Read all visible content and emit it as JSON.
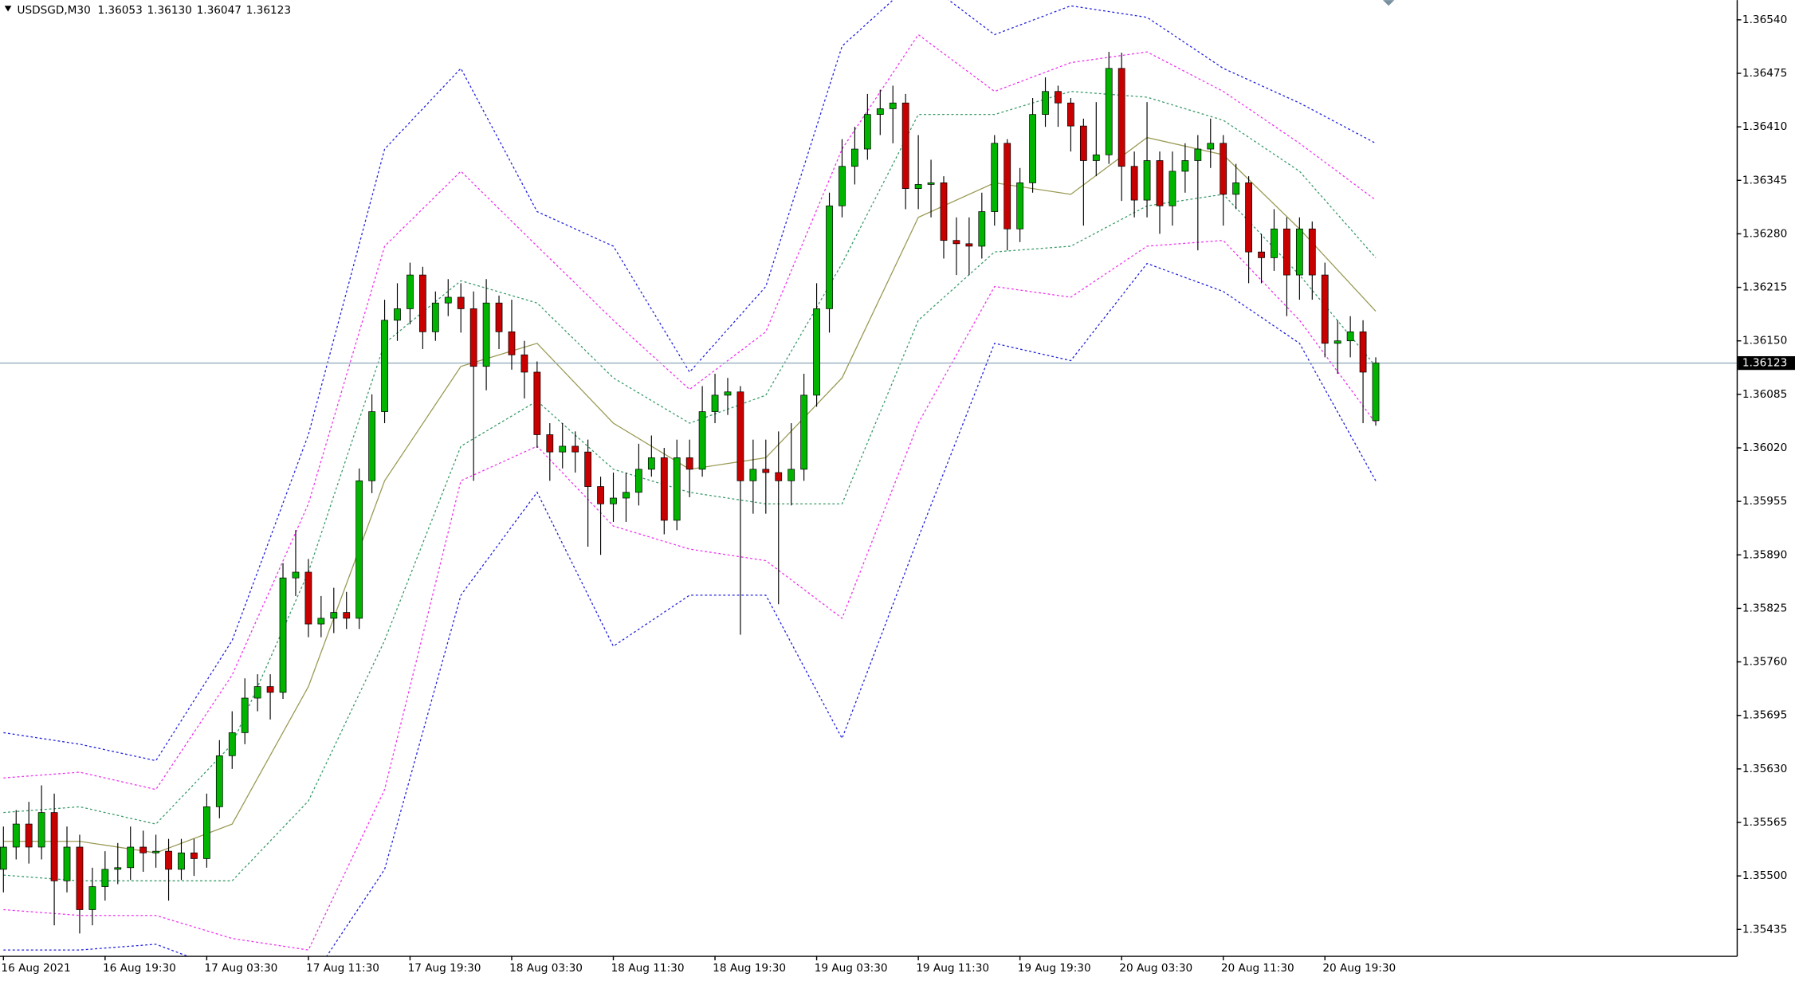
{
  "chart_data": {
    "type": "candlestick",
    "title": "USDSGD,M30",
    "ohlc_labels": [
      "1.36053",
      "1.36130",
      "1.36047",
      "1.36123"
    ],
    "colors": {
      "up": "#00b400",
      "down": "#c80000",
      "outline": "#000000",
      "price_line": "#9fb3c3"
    },
    "grid": false,
    "xlim": [
      -0.27,
      136.4
    ],
    "ylim": [
      1.35403,
      1.36564
    ],
    "xticks": [
      {
        "value": 0,
        "label": "16 Aug 2021"
      },
      {
        "value": 8,
        "label": "16 Aug 19:30"
      },
      {
        "value": 16,
        "label": "17 Aug 03:30"
      },
      {
        "value": 24,
        "label": "17 Aug 11:30"
      },
      {
        "value": 32,
        "label": "17 Aug 19:30"
      },
      {
        "value": 40,
        "label": "18 Aug 03:30"
      },
      {
        "value": 48,
        "label": "18 Aug 11:30"
      },
      {
        "value": 56,
        "label": "18 Aug 19:30"
      },
      {
        "value": 64,
        "label": "19 Aug 03:30"
      },
      {
        "value": 72,
        "label": "19 Aug 11:30"
      },
      {
        "value": 80,
        "label": "19 Aug 19:30"
      },
      {
        "value": 88,
        "label": "20 Aug 03:30"
      },
      {
        "value": 96,
        "label": "20 Aug 11:30"
      },
      {
        "value": 104,
        "label": "20 Aug 19:30"
      }
    ],
    "yticks": [
      {
        "value": 1.3654,
        "label": "1.36540"
      },
      {
        "value": 1.36475,
        "label": "1.36475"
      },
      {
        "value": 1.3641,
        "label": "1.36410"
      },
      {
        "value": 1.36345,
        "label": "1.36345"
      },
      {
        "value": 1.3628,
        "label": "1.36280"
      },
      {
        "value": 1.36215,
        "label": "1.36215"
      },
      {
        "value": 1.3615,
        "label": "1.36150"
      },
      {
        "value": 1.36085,
        "label": "1.36085"
      },
      {
        "value": 1.3602,
        "label": "1.36020"
      },
      {
        "value": 1.35955,
        "label": "1.35955"
      },
      {
        "value": 1.3589,
        "label": "1.35890"
      },
      {
        "value": 1.35825,
        "label": "1.35825"
      },
      {
        "value": 1.3576,
        "label": "1.35760"
      },
      {
        "value": 1.35695,
        "label": "1.35695"
      },
      {
        "value": 1.3563,
        "label": "1.35630"
      },
      {
        "value": 1.35565,
        "label": "1.35565"
      },
      {
        "value": 1.355,
        "label": "1.35500"
      },
      {
        "value": 1.35435,
        "label": "1.35435"
      }
    ],
    "open": [
      1.35508,
      1.35535,
      1.35563,
      1.35535,
      1.35577,
      1.35494,
      1.35535,
      1.35459,
      1.35487,
      1.35508,
      1.3551,
      1.35535,
      1.35528,
      1.3553,
      1.35508,
      1.35528,
      1.35521,
      1.35584,
      1.35646,
      1.35674,
      1.35716,
      1.3573,
      1.35723,
      1.35862,
      1.35869,
      1.35806,
      1.35813,
      1.3582,
      1.35813,
      1.3598,
      1.36064,
      1.36175,
      1.36189,
      1.3623,
      1.36161,
      1.36196,
      1.36203,
      1.36189,
      1.36119,
      1.36196,
      1.36161,
      1.36133,
      1.36112,
      1.36036,
      1.36015,
      1.36022,
      1.36015,
      1.35973,
      1.35952,
      1.35959,
      1.35966,
      1.35994,
      1.36008,
      1.35932,
      1.36008,
      1.35994,
      1.36064,
      1.36084,
      1.36088,
      1.3598,
      1.35994,
      1.3599,
      1.3598,
      1.35994,
      1.36084,
      1.36189,
      1.36314,
      1.36362,
      1.36383,
      1.36425,
      1.36432,
      1.36439,
      1.36335,
      1.3634,
      1.36342,
      1.36272,
      1.36268,
      1.36265,
      1.36307,
      1.3639,
      1.36286,
      1.36342,
      1.36425,
      1.36453,
      1.36439,
      1.36411,
      1.36369,
      1.36376,
      1.36481,
      1.36362,
      1.36321,
      1.36369,
      1.36314,
      1.36356,
      1.36369,
      1.36383,
      1.3639,
      1.36328,
      1.36342,
      1.36258,
      1.36251,
      1.36286,
      1.3623,
      1.36286,
      1.3623,
      1.36147,
      1.3615,
      1.36161,
      1.36053
    ],
    "high": [
      1.3556,
      1.3558,
      1.3559,
      1.3561,
      1.356,
      1.3556,
      1.3555,
      1.3551,
      1.3553,
      1.3554,
      1.3556,
      1.35555,
      1.3555,
      1.35545,
      1.35545,
      1.35545,
      1.356,
      1.35665,
      1.357,
      1.3574,
      1.35745,
      1.35745,
      1.3588,
      1.3592,
      1.35885,
      1.3584,
      1.3585,
      1.35845,
      1.35995,
      1.36085,
      1.362,
      1.3622,
      1.36245,
      1.3624,
      1.3621,
      1.36225,
      1.3622,
      1.3621,
      1.36225,
      1.36205,
      1.362,
      1.3615,
      1.36125,
      1.3605,
      1.3605,
      1.3604,
      1.3603,
      1.35985,
      1.3599,
      1.3599,
      1.36025,
      1.36035,
      1.3602,
      1.3603,
      1.3603,
      1.36095,
      1.3611,
      1.36105,
      1.36095,
      1.3603,
      1.3603,
      1.3604,
      1.3605,
      1.3611,
      1.3622,
      1.3633,
      1.36395,
      1.3641,
      1.3645,
      1.36455,
      1.3646,
      1.3645,
      1.364,
      1.3637,
      1.3635,
      1.363,
      1.363,
      1.3633,
      1.364,
      1.36395,
      1.3636,
      1.36445,
      1.3647,
      1.3646,
      1.36445,
      1.3642,
      1.3644,
      1.36501,
      1.365,
      1.3638,
      1.3644,
      1.3638,
      1.3638,
      1.3639,
      1.364,
      1.3642,
      1.364,
      1.36365,
      1.3635,
      1.3628,
      1.3631,
      1.363,
      1.363,
      1.36295,
      1.36245,
      1.36175,
      1.3618,
      1.36175,
      1.3613
    ],
    "low": [
      1.3548,
      1.3552,
      1.35515,
      1.3552,
      1.3544,
      1.3548,
      1.3543,
      1.3544,
      1.3547,
      1.3549,
      1.35495,
      1.35505,
      1.3551,
      1.3547,
      1.35495,
      1.355,
      1.3551,
      1.3557,
      1.3563,
      1.3566,
      1.357,
      1.3569,
      1.35715,
      1.3584,
      1.3579,
      1.3579,
      1.35795,
      1.358,
      1.358,
      1.35965,
      1.3605,
      1.3615,
      1.3617,
      1.3614,
      1.3615,
      1.3618,
      1.3616,
      1.3598,
      1.3609,
      1.3614,
      1.36115,
      1.3608,
      1.3602,
      1.3598,
      1.35995,
      1.3599,
      1.359,
      1.3589,
      1.3593,
      1.3593,
      1.3595,
      1.35985,
      1.35915,
      1.3592,
      1.3596,
      1.35985,
      1.3605,
      1.3606,
      1.35793,
      1.3594,
      1.3594,
      1.3583,
      1.3595,
      1.3598,
      1.3607,
      1.3616,
      1.363,
      1.3634,
      1.3637,
      1.364,
      1.3639,
      1.3631,
      1.3631,
      1.363,
      1.3625,
      1.3623,
      1.3623,
      1.3625,
      1.3629,
      1.3626,
      1.3627,
      1.3633,
      1.3641,
      1.3641,
      1.3638,
      1.3629,
      1.3635,
      1.36365,
      1.3632,
      1.363,
      1.363,
      1.3628,
      1.3629,
      1.3633,
      1.3626,
      1.3636,
      1.3629,
      1.3631,
      1.3622,
      1.3622,
      1.36235,
      1.3618,
      1.362,
      1.362,
      1.3613,
      1.3611,
      1.3613,
      1.3605,
      1.36047
    ],
    "close": [
      1.35535,
      1.35563,
      1.35535,
      1.35577,
      1.35494,
      1.35535,
      1.35459,
      1.35487,
      1.35508,
      1.3551,
      1.35535,
      1.35528,
      1.3553,
      1.35508,
      1.35528,
      1.35521,
      1.35584,
      1.35646,
      1.35674,
      1.35716,
      1.3573,
      1.35723,
      1.35862,
      1.35869,
      1.35806,
      1.35813,
      1.3582,
      1.35813,
      1.3598,
      1.36064,
      1.36175,
      1.36189,
      1.3623,
      1.36161,
      1.36196,
      1.36203,
      1.36189,
      1.36119,
      1.36196,
      1.36161,
      1.36133,
      1.36112,
      1.36036,
      1.36015,
      1.36022,
      1.36015,
      1.35973,
      1.35952,
      1.35959,
      1.35966,
      1.35994,
      1.36008,
      1.35932,
      1.36008,
      1.35994,
      1.36064,
      1.36084,
      1.36088,
      1.3598,
      1.35994,
      1.3599,
      1.3598,
      1.35994,
      1.36084,
      1.36189,
      1.36314,
      1.36362,
      1.36383,
      1.36425,
      1.36432,
      1.36439,
      1.36335,
      1.3634,
      1.36342,
      1.36272,
      1.36268,
      1.36265,
      1.36307,
      1.3639,
      1.36286,
      1.36342,
      1.36425,
      1.36453,
      1.36439,
      1.36411,
      1.36369,
      1.36376,
      1.36481,
      1.36362,
      1.36321,
      1.36369,
      1.36314,
      1.36356,
      1.36369,
      1.36383,
      1.3639,
      1.36328,
      1.36342,
      1.36258,
      1.36251,
      1.36286,
      1.3623,
      1.36286,
      1.3623,
      1.36147,
      1.3615,
      1.36161,
      1.36112,
      1.36123
    ],
    "bands": {
      "x": [
        0,
        6,
        12,
        18,
        24,
        30,
        36,
        42,
        48,
        54,
        60,
        66,
        72,
        78,
        84,
        90,
        96,
        102,
        108
      ],
      "series": [
        {
          "color": "#2222dd",
          "style": "dotted",
          "values": [
            1.35674,
            1.3566,
            1.3564,
            1.35786,
            1.36036,
            1.36383,
            1.36481,
            1.36307,
            1.36265,
            1.36112,
            1.36216,
            1.36508,
            1.36592,
            1.36522,
            1.36557,
            1.36543,
            1.36481,
            1.36439,
            1.3639
          ]
        },
        {
          "color": "#ee33ee",
          "style": "dotted",
          "values": [
            1.35619,
            1.35626,
            1.35605,
            1.35744,
            1.35952,
            1.36265,
            1.36356,
            1.36265,
            1.36175,
            1.36091,
            1.36161,
            1.36383,
            1.36522,
            1.36453,
            1.36488,
            1.36501,
            1.36453,
            1.3639,
            1.36321
          ]
        },
        {
          "color": "#3a9a6a",
          "style": "dotted",
          "values": [
            1.35577,
            1.35584,
            1.35563,
            1.3566,
            1.35869,
            1.36147,
            1.36223,
            1.36196,
            1.36105,
            1.3605,
            1.36084,
            1.36244,
            1.36425,
            1.36425,
            1.36453,
            1.36446,
            1.36418,
            1.36356,
            1.36251
          ]
        },
        {
          "color": "#9a9a55",
          "style": "solid",
          "values": [
            1.35542,
            1.35542,
            1.35528,
            1.35563,
            1.3573,
            1.3598,
            1.36119,
            1.36147,
            1.3605,
            1.35994,
            1.36008,
            1.36105,
            1.363,
            1.36342,
            1.36328,
            1.36397,
            1.36376,
            1.36286,
            1.36186
          ]
        },
        {
          "color": "#3a9a6a",
          "style": "dotted",
          "values": [
            1.35501,
            1.35494,
            1.35494,
            1.35494,
            1.35591,
            1.35786,
            1.36022,
            1.36077,
            1.35994,
            1.35966,
            1.35952,
            1.35952,
            1.36175,
            1.36258,
            1.36265,
            1.36314,
            1.36328,
            1.3623,
            1.36119
          ]
        },
        {
          "color": "#ee33ee",
          "style": "dotted",
          "values": [
            1.35459,
            1.35452,
            1.35452,
            1.35424,
            1.3541,
            1.35605,
            1.3598,
            1.36022,
            1.35925,
            1.35897,
            1.35883,
            1.35813,
            1.3605,
            1.36216,
            1.36203,
            1.36265,
            1.36272,
            1.36175,
            1.3605
          ]
        },
        {
          "color": "#2222dd",
          "style": "dotted",
          "values": [
            1.3541,
            1.3541,
            1.35417,
            1.35382,
            1.35369,
            1.35508,
            1.35841,
            1.35966,
            1.35779,
            1.35841,
            1.35841,
            1.35667,
            1.35911,
            1.36147,
            1.36126,
            1.36244,
            1.3621,
            1.36147,
            1.3598
          ]
        }
      ]
    }
  }
}
